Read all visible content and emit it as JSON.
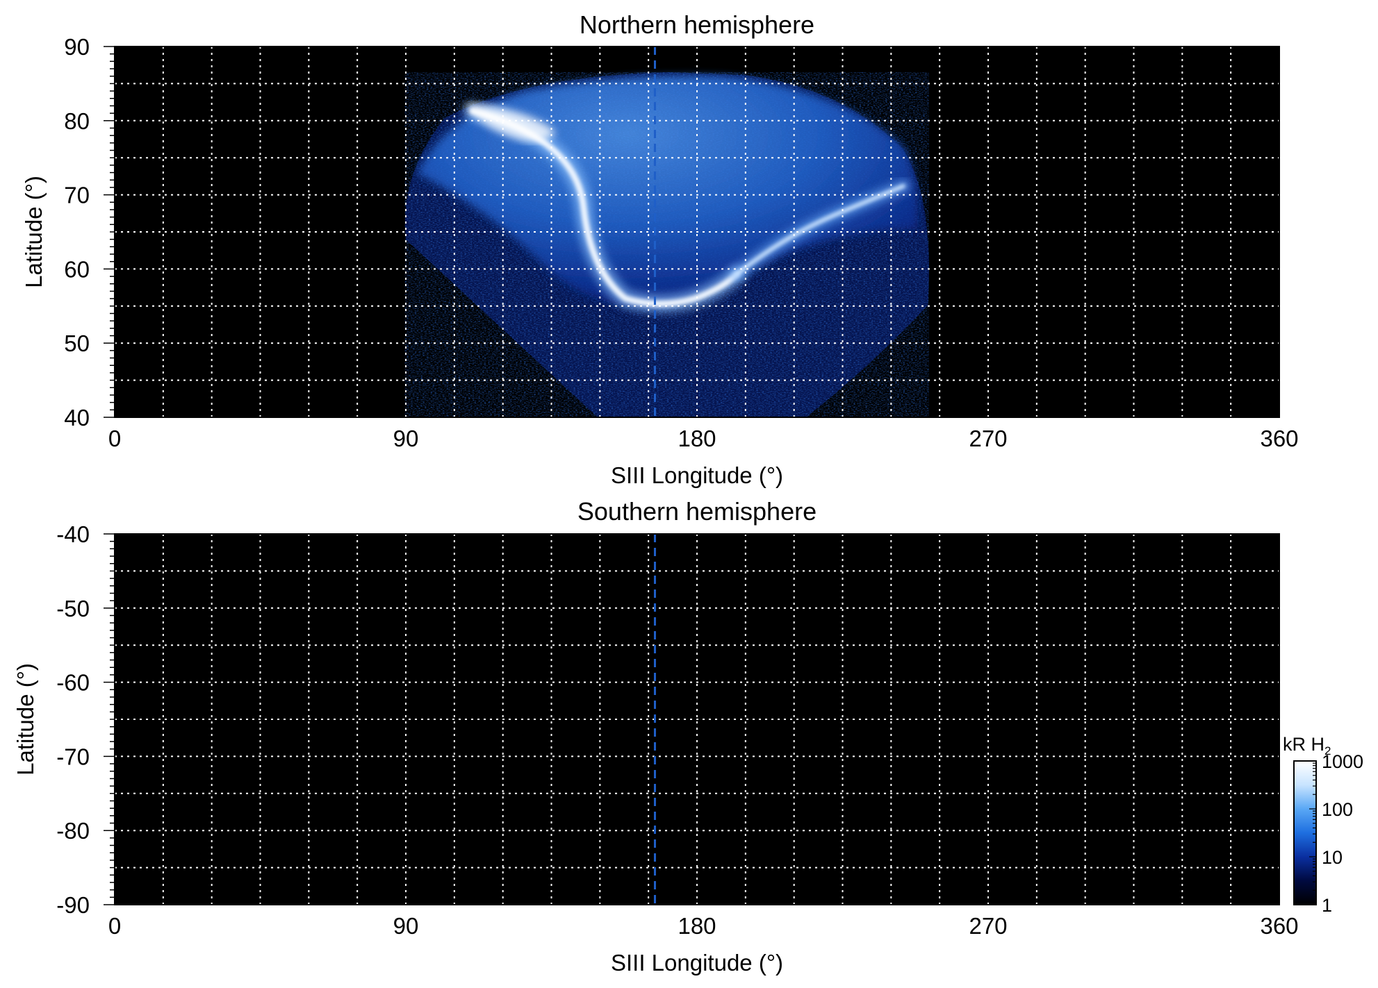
{
  "chart_data": [
    {
      "type": "heatmap",
      "title": "Northern hemisphere",
      "xlabel": "SIII Longitude (°)",
      "ylabel": "Latitude (°)",
      "xlim": [
        0,
        360
      ],
      "ylim": [
        40,
        90
      ],
      "xticks": [
        "0",
        "90",
        "180",
        "270",
        "360"
      ],
      "yticks": [
        "40",
        "50",
        "60",
        "70",
        "80",
        "90"
      ],
      "grid": true,
      "reference_longitude": 167,
      "emission": {
        "coverage_lon_range": [
          89,
          252
        ],
        "main_oval": [
          [
            120,
            79
          ],
          [
            148,
            72
          ],
          [
            152,
            62
          ],
          [
            162,
            56
          ],
          [
            175,
            55
          ],
          [
            185,
            57
          ],
          [
            195,
            60
          ]
        ],
        "dawn_arc": [
          [
            205,
            62
          ],
          [
            220,
            65
          ],
          [
            240,
            70
          ],
          [
            250,
            72
          ]
        ]
      }
    },
    {
      "type": "heatmap",
      "title": "Southern hemisphere",
      "xlabel": "SIII Longitude (°)",
      "ylabel": "Latitude (°)",
      "xlim": [
        0,
        360
      ],
      "ylim": [
        -90,
        -40
      ],
      "xticks": [
        "0",
        "90",
        "180",
        "270",
        "360"
      ],
      "yticks": [
        "-40",
        "-50",
        "-60",
        "-70",
        "-80",
        "-90"
      ],
      "grid": true,
      "reference_longitude": 167,
      "emission": null
    }
  ],
  "colorbar": {
    "label_prefix": "kR H",
    "label_subscript": "2",
    "scale": "log",
    "range": [
      1,
      1000
    ],
    "ticks": [
      "1",
      "10",
      "100",
      "1000"
    ],
    "colors": [
      "#000000",
      "#000a40",
      "#0a2fa0",
      "#1e6fe0",
      "#5aa8f5",
      "#c8e4ff",
      "#ffffff"
    ]
  }
}
